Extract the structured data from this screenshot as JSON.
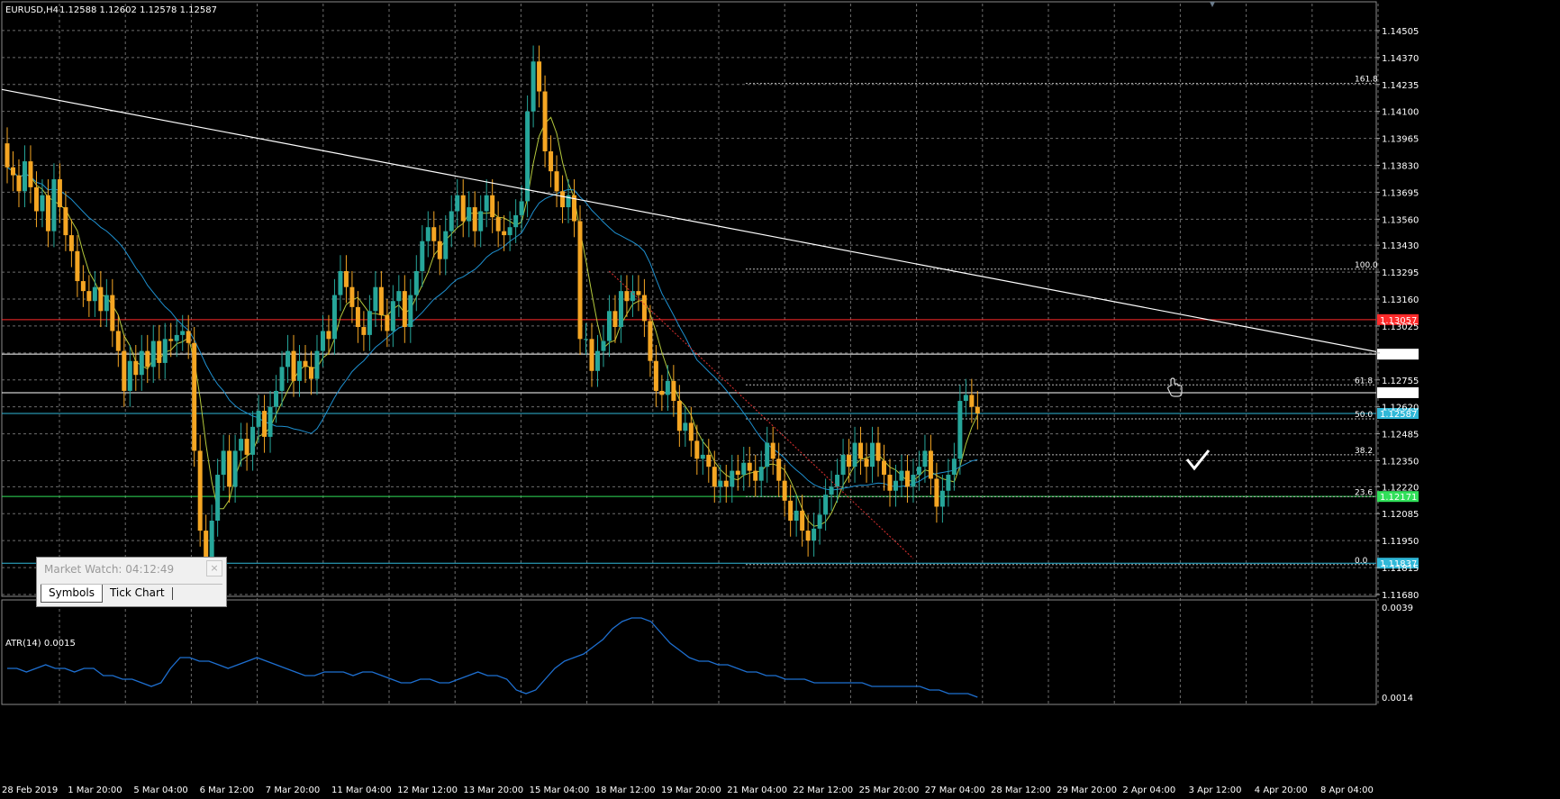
{
  "header": {
    "symbol": "EURUSD,H4",
    "ohlc": "1.12588 1.12602 1.12578 1.12587"
  },
  "indicator": {
    "label": "ATR(14) 0.0015"
  },
  "market_watch": {
    "title": "Market Watch: 04:12:49",
    "close_symbol": "×",
    "tabs": [
      "Symbols",
      "Tick Chart"
    ],
    "active_tab": 0
  },
  "colors": {
    "background": "#000000",
    "bull": "#26a69a",
    "bear": "#f5a623",
    "ma_fast": "#b4c83c",
    "ma_slow": "#1e90d0",
    "atr": "#1e6fd0",
    "trendline": "#ffffff",
    "red_line": "#ff2a2a",
    "green_line": "#31e05a",
    "cyan_line": "#30b8d8"
  },
  "chart_data": [
    {
      "type": "candlestick",
      "symbol": "EURUSD",
      "timeframe": "H4",
      "ylim": [
        1.1168,
        1.1464
      ],
      "y_ticks": [
        "1.14505",
        "1.14370",
        "1.14235",
        "1.14100",
        "1.13965",
        "1.13830",
        "1.13695",
        "1.13560",
        "1.13430",
        "1.13295",
        "1.13160",
        "1.13025",
        "1.12890",
        "1.12755",
        "1.12620",
        "1.12485",
        "1.12350",
        "1.12220",
        "1.12085",
        "1.11950",
        "1.11815",
        "1.11680"
      ],
      "x_ticks": [
        "28 Feb 2019",
        "1 Mar 20:00",
        "5 Mar 04:00",
        "6 Mar 12:00",
        "7 Mar 20:00",
        "11 Mar 04:00",
        "12 Mar 12:00",
        "13 Mar 20:00",
        "15 Mar 04:00",
        "18 Mar 12:00",
        "19 Mar 20:00",
        "21 Mar 04:00",
        "22 Mar 12:00",
        "25 Mar 20:00",
        "27 Mar 04:00",
        "28 Mar 12:00",
        "29 Mar 20:00",
        "2 Apr 04:00",
        "3 Apr 12:00",
        "4 Apr 20:00",
        "8 Apr 04:00"
      ],
      "closes": [
        1.1382,
        1.1378,
        1.137,
        1.1385,
        1.1372,
        1.136,
        1.1368,
        1.135,
        1.1376,
        1.1362,
        1.1348,
        1.134,
        1.1325,
        1.132,
        1.1315,
        1.1322,
        1.131,
        1.1318,
        1.13,
        1.129,
        1.127,
        1.1285,
        1.1278,
        1.129,
        1.1282,
        1.1295,
        1.1284,
        1.1296,
        1.1295,
        1.1298,
        1.13,
        1.1294,
        1.124,
        1.12,
        1.1182,
        1.1205,
        1.1228,
        1.124,
        1.1222,
        1.124,
        1.1246,
        1.1238,
        1.1252,
        1.126,
        1.1247,
        1.1262,
        1.127,
        1.1282,
        1.129,
        1.1275,
        1.1285,
        1.1282,
        1.1276,
        1.129,
        1.13,
        1.1296,
        1.1318,
        1.133,
        1.1322,
        1.1312,
        1.1302,
        1.1298,
        1.131,
        1.1322,
        1.1308,
        1.13,
        1.1315,
        1.132,
        1.1302,
        1.1318,
        1.133,
        1.1345,
        1.1352,
        1.1345,
        1.1336,
        1.135,
        1.136,
        1.1368,
        1.1355,
        1.1362,
        1.135,
        1.136,
        1.1368,
        1.1357,
        1.135,
        1.1348,
        1.1352,
        1.1358,
        1.1365,
        1.141,
        1.1435,
        1.142,
        1.139,
        1.138,
        1.137,
        1.1362,
        1.1368,
        1.1355,
        1.1296,
        1.1296,
        1.128,
        1.129,
        1.1295,
        1.131,
        1.1302,
        1.132,
        1.1315,
        1.132,
        1.1318,
        1.1305,
        1.1285,
        1.127,
        1.1268,
        1.1275,
        1.1265,
        1.125,
        1.1254,
        1.1245,
        1.1236,
        1.1238,
        1.1232,
        1.1222,
        1.1225,
        1.1222,
        1.123,
        1.1228,
        1.1234,
        1.123,
        1.1225,
        1.1232,
        1.1244,
        1.1236,
        1.1225,
        1.1215,
        1.1205,
        1.121,
        1.12,
        1.1195,
        1.1201,
        1.1208,
        1.1218,
        1.1222,
        1.1228,
        1.1238,
        1.1232,
        1.1244,
        1.1236,
        1.1232,
        1.1244,
        1.1235,
        1.1228,
        1.122,
        1.1225,
        1.123,
        1.1222,
        1.1228,
        1.1232,
        1.124,
        1.1226,
        1.1212,
        1.122,
        1.1228,
        1.1236,
        1.1265,
        1.1268,
        1.1262,
        1.12587
      ],
      "levels": [
        {
          "value": 1.13057,
          "label": "1.13057",
          "color": "#ff2a2a",
          "text_color": "#ff2a2a"
        },
        {
          "value": 1.12884,
          "label": "1.12884",
          "color": "#ffffff",
          "text_color": "#000000"
        },
        {
          "value": 1.12691,
          "label": "1.12691",
          "color": "#ffffff",
          "text_color": "#000000"
        },
        {
          "value": 1.12587,
          "label": "1.12587",
          "color": "#30b8d8",
          "text_color": "#000000"
        },
        {
          "value": 1.12171,
          "label": "1.12171",
          "color": "#31e05a",
          "text_color": "#000000"
        },
        {
          "value": 1.11837,
          "label": "1.11837",
          "color": "#30b8d8",
          "text_color": "#000000"
        }
      ],
      "fibonacci": [
        {
          "label": "161.8",
          "value": 1.1424
        },
        {
          "label": "100.0",
          "value": 1.1331
        },
        {
          "label": "61.8",
          "value": 1.1273
        },
        {
          "label": "50.0",
          "value": 1.1256
        },
        {
          "label": "38.2",
          "value": 1.1238
        },
        {
          "label": "23.6",
          "value": 1.1217
        },
        {
          "label": "0.0",
          "value": 1.1183
        }
      ],
      "trendline": {
        "from": [
          0,
          1.1421
        ],
        "to": [
          209,
          1.1291
        ]
      },
      "grid": true
    },
    {
      "type": "line",
      "name": "ATR(14)",
      "ylim": [
        0.0014,
        0.0039
      ],
      "y_ticks": [
        "0.0039",
        "0.0014"
      ],
      "values": [
        0.0022,
        0.0022,
        0.0021,
        0.0022,
        0.0023,
        0.0022,
        0.0022,
        0.0021,
        0.0022,
        0.0022,
        0.002,
        0.002,
        0.0019,
        0.0019,
        0.0018,
        0.0017,
        0.0018,
        0.0022,
        0.0025,
        0.0025,
        0.0024,
        0.0024,
        0.0023,
        0.0022,
        0.0023,
        0.0024,
        0.0025,
        0.0024,
        0.0023,
        0.0022,
        0.0021,
        0.002,
        0.002,
        0.0021,
        0.0021,
        0.0021,
        0.002,
        0.0021,
        0.0021,
        0.002,
        0.0019,
        0.0018,
        0.0018,
        0.0019,
        0.0019,
        0.0018,
        0.0018,
        0.0019,
        0.002,
        0.0021,
        0.002,
        0.002,
        0.0019,
        0.0016,
        0.0015,
        0.0016,
        0.0019,
        0.0022,
        0.0024,
        0.0025,
        0.0026,
        0.0028,
        0.003,
        0.0033,
        0.0035,
        0.0036,
        0.0036,
        0.0035,
        0.0032,
        0.0029,
        0.0027,
        0.0025,
        0.0024,
        0.0024,
        0.0023,
        0.0023,
        0.0022,
        0.0021,
        0.0021,
        0.002,
        0.002,
        0.0019,
        0.0019,
        0.0019,
        0.0018,
        0.0018,
        0.0018,
        0.0018,
        0.0018,
        0.0018,
        0.0017,
        0.0017,
        0.0017,
        0.0017,
        0.0017,
        0.0017,
        0.0016,
        0.0016,
        0.0015,
        0.0015,
        0.0015,
        0.0014
      ]
    }
  ]
}
